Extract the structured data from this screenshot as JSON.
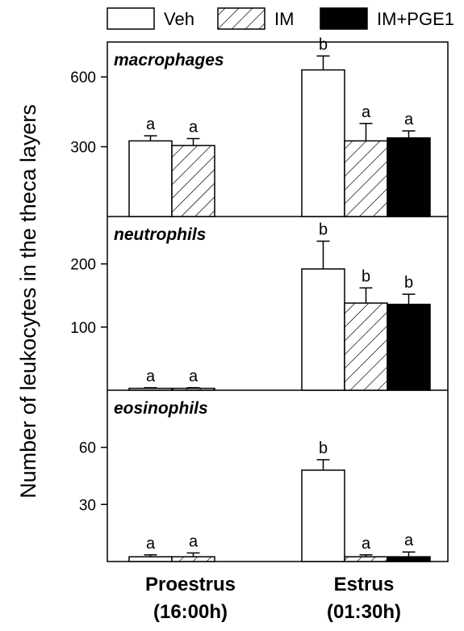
{
  "chart_data": {
    "type": "bar",
    "ylabel": "Number of leukocytes in the theca layers",
    "categories": [
      "Proestrus\n(16:00h)",
      "Estrus\n(01:30h)"
    ],
    "legend": {
      "placement": "top",
      "items": [
        {
          "label": "Veh",
          "fill": "white"
        },
        {
          "label": "IM",
          "fill": "hatched"
        },
        {
          "label": "IM+PGE1",
          "fill": "black"
        }
      ]
    },
    "panels": [
      {
        "title": "macrophages",
        "ylim": [
          0,
          750
        ],
        "yticks": [
          300,
          600
        ],
        "series": [
          {
            "name": "Veh",
            "values": [
              325,
              630
            ],
            "errors": [
              22,
              60
            ],
            "labels": [
              "a",
              "b"
            ]
          },
          {
            "name": "IM",
            "values": [
              305,
              325
            ],
            "errors": [
              30,
              75
            ],
            "labels": [
              "a",
              "a"
            ]
          },
          {
            "name": "IM+PGE1",
            "values": [
              null,
              338
            ],
            "errors": [
              null,
              30
            ],
            "labels": [
              null,
              "a"
            ]
          }
        ]
      },
      {
        "title": "neutrophils",
        "ylim": [
          0,
          275
        ],
        "yticks": [
          100,
          200
        ],
        "series": [
          {
            "name": "Veh",
            "values": [
              3,
              192
            ],
            "errors": [
              1,
              44
            ],
            "labels": [
              "a",
              "b"
            ]
          },
          {
            "name": "IM",
            "values": [
              3,
              138
            ],
            "errors": [
              1,
              24
            ],
            "labels": [
              "a",
              "b"
            ]
          },
          {
            "name": "IM+PGE1",
            "values": [
              null,
              136
            ],
            "errors": [
              null,
              16
            ],
            "labels": [
              null,
              "b"
            ]
          }
        ]
      },
      {
        "title": "eosinophils",
        "ylim": [
          0,
          90
        ],
        "yticks": [
          30,
          60
        ],
        "series": [
          {
            "name": "Veh",
            "values": [
              2.5,
              48
            ],
            "errors": [
              1,
              5.5
            ],
            "labels": [
              "a",
              "b"
            ]
          },
          {
            "name": "IM",
            "values": [
              2.5,
              2.5
            ],
            "errors": [
              2,
              1
            ],
            "labels": [
              "a",
              "a"
            ]
          },
          {
            "name": "IM+PGE1",
            "values": [
              null,
              2.5
            ],
            "errors": [
              null,
              2.5
            ],
            "labels": [
              null,
              "a"
            ]
          }
        ]
      }
    ]
  }
}
